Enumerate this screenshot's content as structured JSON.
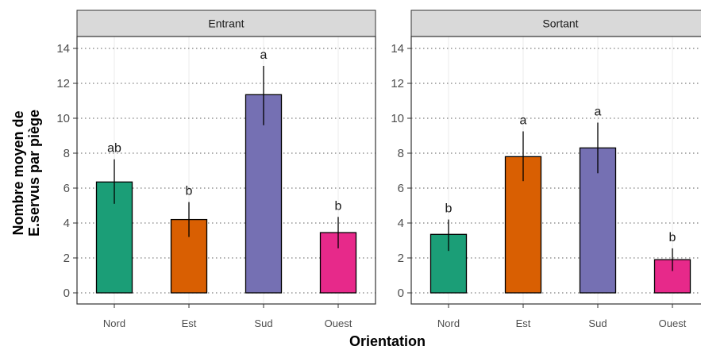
{
  "chart_data": {
    "type": "bar",
    "xlabel": "Orientation",
    "ylabel_lines": [
      "Nombre moyen de",
      "E.servus par piège"
    ],
    "ylim": [
      0,
      15
    ],
    "yticks": [
      0,
      2,
      4,
      6,
      8,
      10,
      12,
      14
    ],
    "grid": true,
    "categories": [
      "Nord",
      "Est",
      "Sud",
      "Ouest"
    ],
    "colors": [
      "#1b9e77",
      "#d95f02",
      "#7570b3",
      "#e7298a"
    ],
    "panels": [
      {
        "title": "Entrant",
        "values": [
          6.35,
          4.2,
          11.35,
          3.45
        ],
        "err_low": [
          5.1,
          3.2,
          9.6,
          2.55
        ],
        "err_high": [
          7.65,
          5.2,
          13.0,
          4.35
        ],
        "labels": [
          "ab",
          "b",
          "a",
          "b"
        ]
      },
      {
        "title": "Sortant",
        "values": [
          3.35,
          7.8,
          8.3,
          1.9
        ],
        "err_low": [
          2.4,
          6.4,
          6.85,
          1.25
        ],
        "err_high": [
          4.2,
          9.25,
          9.75,
          2.55
        ],
        "labels": [
          "b",
          "a",
          "a",
          "b"
        ]
      }
    ]
  }
}
